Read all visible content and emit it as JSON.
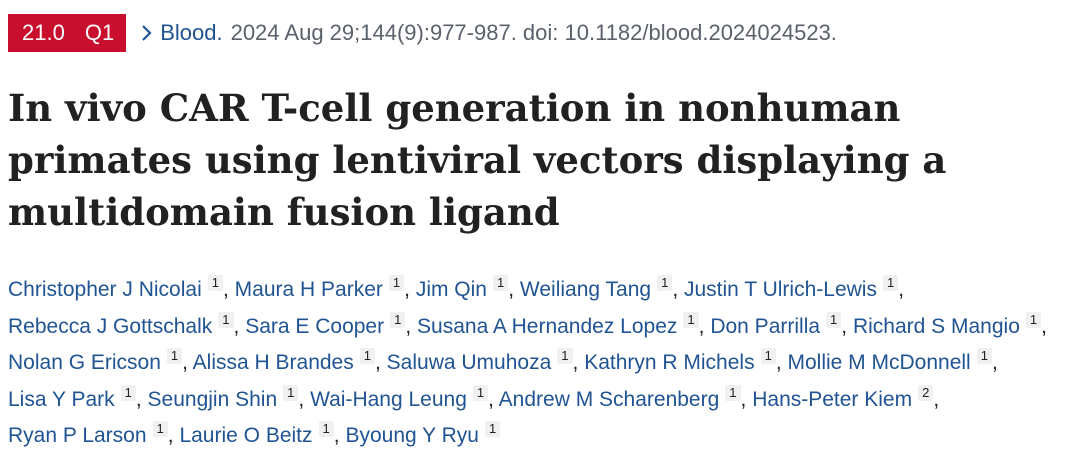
{
  "badges": {
    "impact_factor": "21.0",
    "quartile": "Q1"
  },
  "colors": {
    "badge": "#c8102e",
    "link": "#205493",
    "muted": "#5b616b"
  },
  "journal": "Blood.",
  "citation": "2024 Aug 29;144(9):977-987. doi: 10.1182/blood.2024024523.",
  "title": "In vivo CAR T-cell generation in nonhuman primates using lentiviral vectors displaying a multidomain fusion ligand",
  "authors": [
    {
      "name": "Christopher J Nicolai",
      "aff": "1"
    },
    {
      "name": "Maura H Parker",
      "aff": "1"
    },
    {
      "name": "Jim Qin",
      "aff": "1"
    },
    {
      "name": "Weiliang Tang",
      "aff": "1"
    },
    {
      "name": "Justin T Ulrich-Lewis",
      "aff": "1"
    },
    {
      "name": "Rebecca J Gottschalk",
      "aff": "1"
    },
    {
      "name": "Sara E Cooper",
      "aff": "1"
    },
    {
      "name": "Susana A Hernandez Lopez",
      "aff": "1"
    },
    {
      "name": "Don Parrilla",
      "aff": "1"
    },
    {
      "name": "Richard S Mangio",
      "aff": "1"
    },
    {
      "name": "Nolan G Ericson",
      "aff": "1"
    },
    {
      "name": "Alissa H Brandes",
      "aff": "1"
    },
    {
      "name": "Saluwa Umuhoza",
      "aff": "1"
    },
    {
      "name": "Kathryn R Michels",
      "aff": "1"
    },
    {
      "name": "Mollie M McDonnell",
      "aff": "1"
    },
    {
      "name": "Lisa Y Park",
      "aff": "1"
    },
    {
      "name": "Seungjin Shin",
      "aff": "1"
    },
    {
      "name": "Wai-Hang Leung",
      "aff": "1"
    },
    {
      "name": "Andrew M Scharenberg",
      "aff": "1"
    },
    {
      "name": "Hans-Peter Kiem",
      "aff": "2"
    },
    {
      "name": "Ryan P Larson",
      "aff": "1"
    },
    {
      "name": "Laurie O Beitz",
      "aff": "1"
    },
    {
      "name": "Byoung Y Ryu",
      "aff": "1"
    }
  ]
}
